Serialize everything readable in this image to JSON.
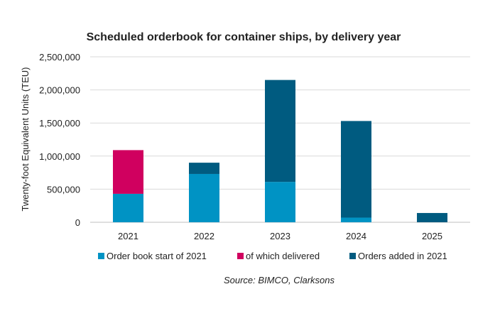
{
  "chart_data": {
    "type": "bar",
    "stacked": true,
    "title": "Scheduled orderbook for container ships, by delivery year",
    "xlabel": "",
    "ylabel": "Twenty-foot Equivalent Units (TEU)",
    "ylim": [
      0,
      2500000
    ],
    "yticks": [
      0,
      500000,
      1000000,
      1500000,
      2000000,
      2500000
    ],
    "ytick_labels": [
      "0",
      "500,000",
      "1,000,000",
      "1,500,000",
      "2,000,000",
      "2,500,000"
    ],
    "categories": [
      "2021",
      "2022",
      "2023",
      "2024",
      "2025"
    ],
    "series": [
      {
        "name": "Order book start of 2021",
        "color": "#0093c4",
        "values": [
          430000,
          730000,
          610000,
          70000,
          0
        ]
      },
      {
        "name": "of which delivered",
        "color": "#d0005f",
        "values": [
          660000,
          0,
          0,
          0,
          0
        ]
      },
      {
        "name": "Orders added in 2021",
        "color": "#005b80",
        "values": [
          0,
          170000,
          1540000,
          1460000,
          140000
        ]
      }
    ],
    "grid": true,
    "legend_position": "bottom",
    "source": "Source: BIMCO, Clarksons"
  }
}
